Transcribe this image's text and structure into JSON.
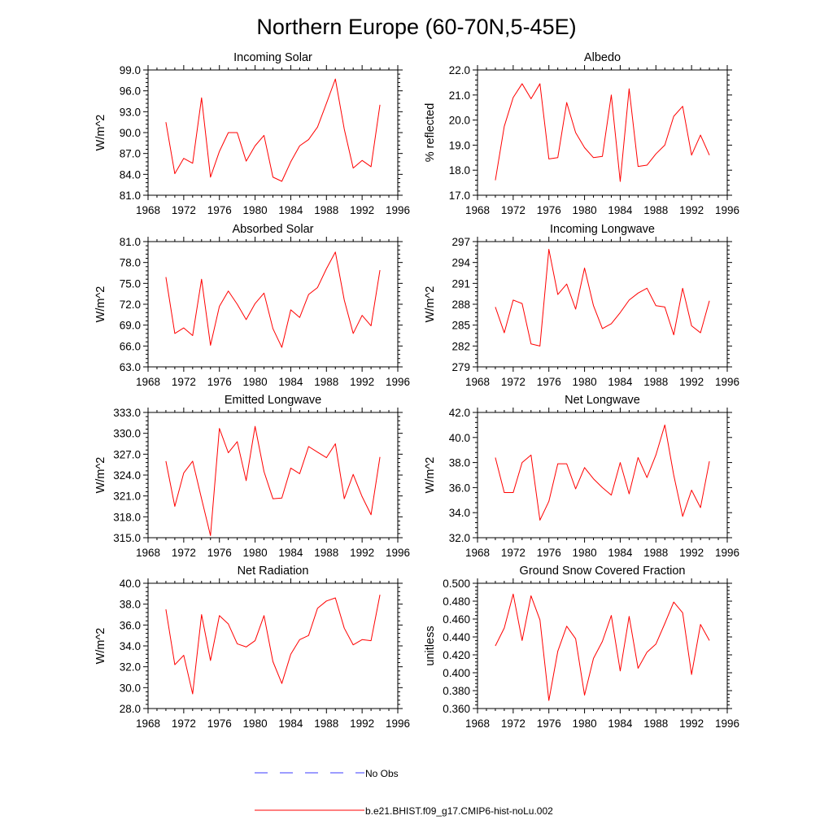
{
  "figure": {
    "title": "Northern Europe (60-70N,5-45E)"
  },
  "colors": {
    "series_line": "#ff0000",
    "obs_line": "#3b3bff",
    "axis": "#000000",
    "background": "#ffffff"
  },
  "legend": {
    "entries": [
      {
        "label": "No Obs",
        "style": "dashed",
        "color": "#3b3bff"
      },
      {
        "label": "b.e21.BHIST.f09_g17.CMIP6-hist-noLu.002",
        "style": "solid",
        "color": "#ff0000"
      }
    ]
  },
  "chart_data": [
    {
      "type": "line",
      "title": "Incoming Solar",
      "ylabel": "W/m^2",
      "xlabel": "",
      "xlim": [
        1968,
        1996
      ],
      "ylim": [
        81.0,
        99.0
      ],
      "xticks": [
        1968,
        1972,
        1976,
        1980,
        1984,
        1988,
        1992,
        1996
      ],
      "yticks": [
        "81.0",
        "84.0",
        "87.0",
        "90.0",
        "93.0",
        "96.0",
        "99.0"
      ],
      "x": [
        1970,
        1971,
        1972,
        1973,
        1974,
        1975,
        1976,
        1977,
        1978,
        1979,
        1980,
        1981,
        1982,
        1983,
        1984,
        1985,
        1986,
        1987,
        1988,
        1989,
        1990,
        1991,
        1992,
        1993,
        1994
      ],
      "series": [
        {
          "values": [
            91.5,
            84.1,
            86.3,
            85.6,
            95.0,
            83.6,
            87.3,
            90.0,
            90.0,
            85.9,
            88.1,
            89.6,
            83.6,
            83.0,
            85.8,
            88.1,
            89.0,
            90.8,
            94.2,
            97.7,
            90.5,
            84.9,
            86.0,
            85.1,
            94.0
          ]
        }
      ]
    },
    {
      "type": "line",
      "title": "Albedo",
      "ylabel": "% reflected",
      "xlabel": "",
      "xlim": [
        1968,
        1996
      ],
      "ylim": [
        17.0,
        22.0
      ],
      "xticks": [
        1968,
        1972,
        1976,
        1980,
        1984,
        1988,
        1992,
        1996
      ],
      "yticks": [
        "17.0",
        "18.0",
        "19.0",
        "20.0",
        "21.0",
        "22.0"
      ],
      "x": [
        1970,
        1971,
        1972,
        1973,
        1974,
        1975,
        1976,
        1977,
        1978,
        1979,
        1980,
        1981,
        1982,
        1983,
        1984,
        1985,
        1986,
        1987,
        1988,
        1989,
        1990,
        1991,
        1992,
        1993,
        1994
      ],
      "series": [
        {
          "values": [
            17.6,
            19.75,
            20.9,
            21.45,
            20.85,
            21.45,
            18.45,
            18.5,
            20.7,
            19.5,
            18.9,
            18.5,
            18.55,
            21.0,
            17.55,
            21.25,
            18.15,
            18.2,
            18.65,
            19.0,
            20.15,
            20.55,
            18.6,
            19.4,
            18.6
          ]
        }
      ]
    },
    {
      "type": "line",
      "title": "Absorbed Solar",
      "ylabel": "W/m^2",
      "xlabel": "",
      "xlim": [
        1968,
        1996
      ],
      "ylim": [
        63.0,
        81.0
      ],
      "xticks": [
        1968,
        1972,
        1976,
        1980,
        1984,
        1988,
        1992,
        1996
      ],
      "yticks": [
        "63.0",
        "66.0",
        "69.0",
        "72.0",
        "75.0",
        "78.0",
        "81.0"
      ],
      "x": [
        1970,
        1971,
        1972,
        1973,
        1974,
        1975,
        1976,
        1977,
        1978,
        1979,
        1980,
        1981,
        1982,
        1983,
        1984,
        1985,
        1986,
        1987,
        1988,
        1989,
        1990,
        1991,
        1992,
        1993,
        1994
      ],
      "series": [
        {
          "values": [
            75.9,
            67.8,
            68.6,
            67.5,
            75.6,
            66.1,
            71.7,
            73.9,
            72.0,
            69.8,
            72.1,
            73.6,
            68.5,
            65.8,
            71.2,
            70.1,
            73.4,
            74.4,
            77.1,
            79.5,
            72.6,
            67.8,
            70.4,
            68.9,
            76.9
          ]
        }
      ]
    },
    {
      "type": "line",
      "title": "Incoming Longwave",
      "ylabel": "W/m^2",
      "xlabel": "",
      "xlim": [
        1968,
        1996
      ],
      "ylim": [
        279,
        297
      ],
      "xticks": [
        1968,
        1972,
        1976,
        1980,
        1984,
        1988,
        1992,
        1996
      ],
      "yticks": [
        "279",
        "282",
        "285",
        "288",
        "291",
        "294",
        "297"
      ],
      "x": [
        1970,
        1971,
        1972,
        1973,
        1974,
        1975,
        1976,
        1977,
        1978,
        1979,
        1980,
        1981,
        1982,
        1983,
        1984,
        1985,
        1986,
        1987,
        1988,
        1989,
        1990,
        1991,
        1992,
        1993,
        1994
      ],
      "series": [
        {
          "values": [
            287.6,
            283.9,
            288.6,
            288.1,
            282.3,
            282.0,
            295.9,
            289.4,
            290.9,
            287.3,
            293.2,
            287.8,
            284.5,
            285.2,
            286.8,
            288.6,
            289.6,
            290.3,
            287.8,
            287.6,
            283.6,
            290.3,
            284.9,
            283.9,
            288.5
          ]
        }
      ]
    },
    {
      "type": "line",
      "title": "Emitted Longwave",
      "ylabel": "W/m^2",
      "xlabel": "",
      "xlim": [
        1968,
        1996
      ],
      "ylim": [
        315.0,
        333.0
      ],
      "xticks": [
        1968,
        1972,
        1976,
        1980,
        1984,
        1988,
        1992,
        1996
      ],
      "yticks": [
        "315.0",
        "318.0",
        "321.0",
        "324.0",
        "327.0",
        "330.0",
        "333.0"
      ],
      "x": [
        1970,
        1971,
        1972,
        1973,
        1974,
        1975,
        1976,
        1977,
        1978,
        1979,
        1980,
        1981,
        1982,
        1983,
        1984,
        1985,
        1986,
        1987,
        1988,
        1989,
        1990,
        1991,
        1992,
        1993,
        1994
      ],
      "series": [
        {
          "values": [
            326.0,
            319.5,
            324.3,
            326.0,
            320.6,
            315.3,
            330.7,
            327.2,
            328.8,
            323.2,
            331.0,
            324.5,
            320.6,
            320.7,
            325.0,
            324.2,
            328.1,
            327.3,
            326.5,
            328.5,
            320.6,
            324.1,
            320.9,
            318.3,
            326.6
          ]
        }
      ]
    },
    {
      "type": "line",
      "title": "Net Longwave",
      "ylabel": "W/m^2",
      "xlabel": "",
      "xlim": [
        1968,
        1996
      ],
      "ylim": [
        32.0,
        42.0
      ],
      "xticks": [
        1968,
        1972,
        1976,
        1980,
        1984,
        1988,
        1992,
        1996
      ],
      "yticks": [
        "32.0",
        "34.0",
        "36.0",
        "38.0",
        "40.0",
        "42.0"
      ],
      "x": [
        1970,
        1971,
        1972,
        1973,
        1974,
        1975,
        1976,
        1977,
        1978,
        1979,
        1980,
        1981,
        1982,
        1983,
        1984,
        1985,
        1986,
        1987,
        1988,
        1989,
        1990,
        1991,
        1992,
        1993,
        1994
      ],
      "series": [
        {
          "values": [
            38.4,
            35.6,
            35.6,
            38.0,
            38.6,
            33.4,
            34.9,
            37.9,
            37.9,
            35.9,
            37.6,
            36.7,
            36.0,
            35.4,
            38.0,
            35.5,
            38.4,
            36.8,
            38.6,
            41.0,
            37.0,
            33.7,
            35.8,
            34.4,
            38.1
          ]
        }
      ]
    },
    {
      "type": "line",
      "title": "Net Radiation",
      "ylabel": "W/m^2",
      "xlabel": "",
      "xlim": [
        1968,
        1996
      ],
      "ylim": [
        28.0,
        40.0
      ],
      "xticks": [
        1968,
        1972,
        1976,
        1980,
        1984,
        1988,
        1992,
        1996
      ],
      "yticks": [
        "28.0",
        "30.0",
        "32.0",
        "34.0",
        "36.0",
        "38.0",
        "40.0"
      ],
      "x": [
        1970,
        1971,
        1972,
        1973,
        1974,
        1975,
        1976,
        1977,
        1978,
        1979,
        1980,
        1981,
        1982,
        1983,
        1984,
        1985,
        1986,
        1987,
        1988,
        1989,
        1990,
        1991,
        1992,
        1993,
        1994
      ],
      "series": [
        {
          "values": [
            37.5,
            32.2,
            33.1,
            29.4,
            37.0,
            32.6,
            36.9,
            36.1,
            34.2,
            33.9,
            34.5,
            36.9,
            32.5,
            30.4,
            33.2,
            34.6,
            35.0,
            37.6,
            38.3,
            38.6,
            35.7,
            34.1,
            34.6,
            34.5,
            38.9
          ]
        }
      ]
    },
    {
      "type": "line",
      "title": "Ground Snow Covered Fraction",
      "ylabel": "unitless",
      "xlabel": "",
      "xlim": [
        1968,
        1996
      ],
      "ylim": [
        0.36,
        0.5
      ],
      "xticks": [
        1968,
        1972,
        1976,
        1980,
        1984,
        1988,
        1992,
        1996
      ],
      "yticks": [
        "0.360",
        "0.380",
        "0.400",
        "0.420",
        "0.440",
        "0.460",
        "0.480",
        "0.500"
      ],
      "x": [
        1970,
        1971,
        1972,
        1973,
        1974,
        1975,
        1976,
        1977,
        1978,
        1979,
        1980,
        1981,
        1982,
        1983,
        1984,
        1985,
        1986,
        1987,
        1988,
        1989,
        1990,
        1991,
        1992,
        1993,
        1994
      ],
      "series": [
        {
          "values": [
            0.43,
            0.45,
            0.488,
            0.436,
            0.486,
            0.459,
            0.369,
            0.424,
            0.452,
            0.438,
            0.375,
            0.416,
            0.435,
            0.464,
            0.402,
            0.463,
            0.405,
            0.423,
            0.432,
            0.455,
            0.479,
            0.467,
            0.398,
            0.454,
            0.436
          ]
        }
      ]
    }
  ]
}
